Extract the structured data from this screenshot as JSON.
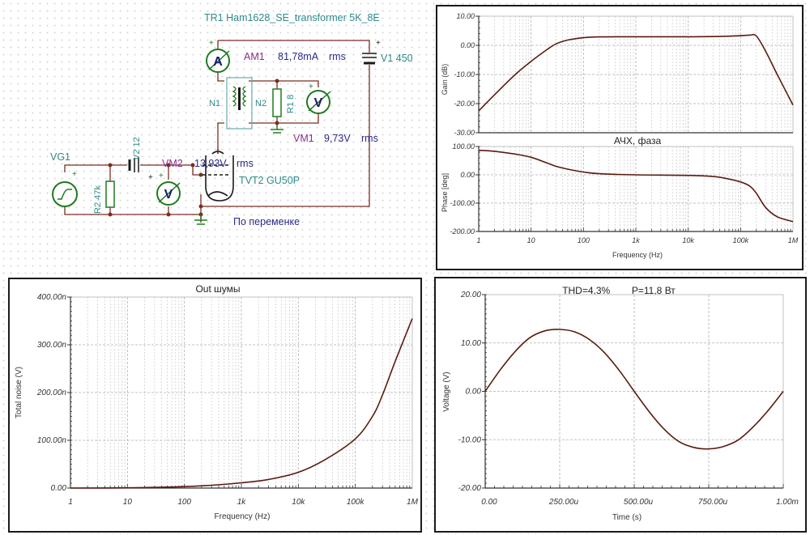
{
  "schematic": {
    "transformer_label": "TR1 Ham1628_SE_transformer 5K_8E",
    "ammeter": {
      "symbol": "A",
      "name": "AM1",
      "value": "81,78mA",
      "unit": "rms"
    },
    "supply": {
      "name": "V1 450"
    },
    "primary": "N1",
    "secondary": "N2",
    "load_resistor": "R1 8",
    "vm1": {
      "symbol": "V",
      "name": "VM1",
      "value": "9,73V",
      "unit": "rms"
    },
    "vm2": {
      "symbol": "V",
      "name": "VM2",
      "value": "13,93V",
      "unit": "rms"
    },
    "generator": "VG1",
    "bias_battery": "V2 12",
    "grid_resistor": "R2 47k",
    "tube": "TVT2 GU50P",
    "note": "По переменке",
    "plus": "+",
    "colors": {
      "wire": "#7a2e22",
      "component": "#1f7a1f",
      "label_teal": "#2e8a8a",
      "label_purple": "#8b2f8b",
      "value_blue": "#2a2a8a"
    }
  },
  "chart_data": [
    {
      "id": "frequency-response",
      "type": "line",
      "title": "АЧХ, фаза",
      "xlabel": "Frequency (Hz)",
      "xscale": "log",
      "xlim": [
        1,
        1000000
      ],
      "xticks": [
        "1",
        "10",
        "100",
        "1k",
        "10k",
        "100k",
        "1M"
      ],
      "line_color": "#5a1a10",
      "panels": [
        {
          "ylabel": "Gain (dB)",
          "ylim": [
            -30,
            10
          ],
          "yticks": [
            "10.00",
            "0.00",
            "-10.00",
            "-20.00",
            "-30.00"
          ],
          "x": [
            1,
            2,
            5,
            10,
            20,
            30,
            50,
            100,
            200,
            1000,
            10000,
            50000,
            100000,
            150000,
            200000,
            300000,
            500000,
            1000000
          ],
          "y": [
            -22.5,
            -17,
            -10,
            -5.5,
            -1.5,
            0.5,
            1.8,
            2.6,
            2.9,
            2.95,
            2.95,
            3.1,
            3.3,
            3.5,
            3.2,
            -2,
            -10,
            -20.5
          ]
        },
        {
          "ylabel": "Phase [deg]",
          "ylim": [
            -200,
            100
          ],
          "yticks": [
            "100.00",
            "0.00",
            "-100.00",
            "-200.00"
          ],
          "x": [
            1,
            2,
            5,
            10,
            20,
            30,
            50,
            100,
            200,
            1000,
            10000,
            30000,
            50000,
            100000,
            150000,
            200000,
            300000,
            500000,
            1000000
          ],
          "y": [
            87,
            83,
            73,
            62,
            42,
            30,
            20,
            10,
            4,
            0,
            -2,
            -6,
            -12,
            -25,
            -40,
            -65,
            -115,
            -148,
            -165
          ]
        }
      ]
    },
    {
      "id": "noise",
      "type": "line",
      "title": "Out шумы",
      "xlabel": "Frequency (Hz)",
      "ylabel": "Total noise (V)",
      "xscale": "log",
      "xlim": [
        1,
        1000000
      ],
      "ylim": [
        0,
        400
      ],
      "yunit": "n",
      "xticks": [
        "1",
        "10",
        "100",
        "1k",
        "10k",
        "100k",
        "1M"
      ],
      "yticks": [
        "400.00n",
        "300.00n",
        "200.00n",
        "100.00n",
        "0.00"
      ],
      "line_color": "#5a1a10",
      "x": [
        1,
        10,
        100,
        300,
        1000,
        3000,
        10000,
        30000,
        100000,
        200000,
        300000,
        500000,
        1000000
      ],
      "y": [
        0,
        0.5,
        3,
        6,
        11,
        18,
        33,
        60,
        103,
        150,
        195,
        265,
        355
      ]
    },
    {
      "id": "transient",
      "type": "line",
      "title": "THD=4,3%        P=11,8 Вт",
      "xlabel": "Time (s)",
      "ylabel": "Voltage (V)",
      "xlim": [
        0,
        1.0
      ],
      "xunit": "ms",
      "ylim": [
        -20,
        20
      ],
      "xticks": [
        "0.00",
        "250.00u",
        "500.00u",
        "750.00u",
        "1.00m"
      ],
      "yticks": [
        "20.00",
        "10.00",
        "0.00",
        "-10.00",
        "-20.00"
      ],
      "line_color": "#5a1a10",
      "amplitude_pos": 12.8,
      "amplitude_neg": -11.9,
      "x": [
        0,
        0.05,
        0.1,
        0.15,
        0.2,
        0.25,
        0.3,
        0.35,
        0.4,
        0.45,
        0.5,
        0.55,
        0.6,
        0.65,
        0.7,
        0.75,
        0.8,
        0.85,
        0.9,
        0.95,
        1.0
      ],
      "y": [
        0,
        4.4,
        8.2,
        11.1,
        12.5,
        12.8,
        12.3,
        10.7,
        8,
        4.3,
        0,
        -4.2,
        -7.8,
        -10.4,
        -11.6,
        -11.9,
        -11.4,
        -10,
        -7.3,
        -3.9,
        0
      ]
    }
  ]
}
